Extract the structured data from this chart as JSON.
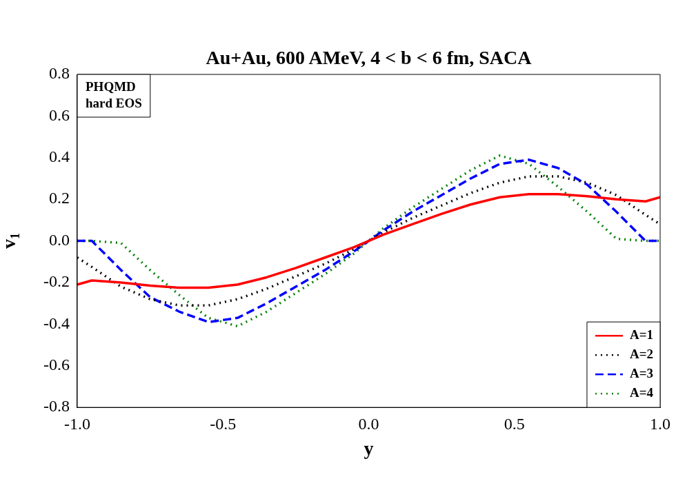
{
  "chart_data": {
    "type": "line",
    "title": "Au+Au, 600 AMeV, 4 < b < 6 fm, SACA",
    "xlabel": "y",
    "ylabel": "v$_{1}$",
    "annotations": [
      "PHQMD\nhard EOS"
    ],
    "x": [
      -1.0,
      -0.95,
      -0.85,
      -0.75,
      -0.65,
      -0.55,
      -0.45,
      -0.35,
      -0.25,
      -0.15,
      -0.05,
      0.0,
      0.05,
      0.15,
      0.25,
      0.35,
      0.45,
      0.55,
      0.65,
      0.75,
      0.85,
      0.95,
      1.0
    ],
    "series": [
      {
        "name": "A=1",
        "color": "#ff0000",
        "line_style": "solid",
        "values": [
          -0.21,
          -0.19,
          -0.2,
          -0.215,
          -0.225,
          -0.225,
          -0.21,
          -0.175,
          -0.13,
          -0.08,
          -0.03,
          0.0,
          0.03,
          0.08,
          0.13,
          0.175,
          0.21,
          0.225,
          0.225,
          0.215,
          0.2,
          0.19,
          0.21
        ]
      },
      {
        "name": "A=2",
        "color": "#000000",
        "line_style": "dotted",
        "values": [
          -0.08,
          -0.125,
          -0.22,
          -0.28,
          -0.31,
          -0.31,
          -0.28,
          -0.23,
          -0.17,
          -0.11,
          -0.04,
          0.0,
          0.04,
          0.11,
          0.17,
          0.23,
          0.28,
          0.31,
          0.31,
          0.28,
          0.22,
          0.125,
          0.08
        ]
      },
      {
        "name": "A=3",
        "color": "#0000ff",
        "line_style": "dashed",
        "values": [
          0.0,
          0.0,
          -0.14,
          -0.27,
          -0.34,
          -0.39,
          -0.37,
          -0.3,
          -0.22,
          -0.14,
          -0.05,
          0.0,
          0.05,
          0.14,
          0.22,
          0.3,
          0.37,
          0.39,
          0.35,
          0.27,
          0.14,
          0.0,
          0.0
        ]
      },
      {
        "name": "A=4",
        "color": "#008000",
        "line_style": "dotted",
        "values": [
          0.0,
          0.0,
          -0.01,
          -0.14,
          -0.26,
          -0.37,
          -0.41,
          -0.34,
          -0.25,
          -0.16,
          -0.06,
          0.0,
          0.06,
          0.16,
          0.25,
          0.34,
          0.41,
          0.37,
          0.26,
          0.14,
          0.01,
          0.0,
          0.0
        ]
      }
    ],
    "xlim": [
      -1.0,
      1.0
    ],
    "xticks": [
      {
        "value": -1.0,
        "label": "-1.0"
      },
      {
        "value": -0.5,
        "label": "-0.5"
      },
      {
        "value": 0,
        "label": "0.0"
      },
      {
        "value": 0.5,
        "label": "0.5"
      },
      {
        "value": 1.0,
        "label": "1.0"
      }
    ],
    "ylim": [
      -0.8,
      0.8
    ],
    "yticks": [
      -0.8,
      -0.6,
      -0.4,
      -0.2,
      {
        "value": 0,
        "label": "0.0"
      },
      0.2,
      0.4,
      0.6,
      0.8
    ],
    "grid": false,
    "legend": "bottom right",
    "marker": "none"
  }
}
